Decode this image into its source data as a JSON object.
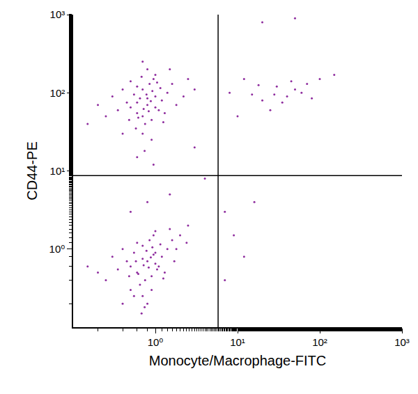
{
  "chart_data": {
    "type": "scatter",
    "x_label": "Monocyte/Macrophage-FITC",
    "y_label": "CD44-PE",
    "color": "#8e2c9e",
    "marker": "dot",
    "log": true,
    "grid": false,
    "xlim": [
      0.1,
      1000
    ],
    "ylim": [
      0.1,
      1000
    ],
    "xticks": [
      {
        "value": 1,
        "label": "10⁰"
      },
      {
        "value": 10,
        "label": "10¹"
      },
      {
        "value": 100,
        "label": "10²"
      },
      {
        "value": 1000,
        "label": "10³"
      }
    ],
    "yticks": [
      {
        "value": 1,
        "label": "10⁰"
      },
      {
        "value": 10,
        "label": "10¹"
      },
      {
        "value": 100,
        "label": "10²"
      },
      {
        "value": 1000,
        "label": "10³"
      }
    ],
    "gates": {
      "x": 5.8,
      "y": 8.7
    },
    "x": [
      0.8,
      0.6,
      1.0,
      0.7,
      0.9,
      1.2,
      0.5,
      0.65,
      0.85,
      1.1,
      0.75,
      0.95,
      1.4,
      0.55,
      0.45,
      0.7,
      1.3,
      0.6,
      0.8,
      1.6,
      0.35,
      0.3,
      0.25,
      0.9,
      1.0,
      1.8,
      0.5,
      0.4,
      1.15,
      0.72,
      0.88,
      0.62,
      1.05,
      2.2,
      0.2,
      0.68,
      0.78,
      1.25,
      0.58,
      0.92,
      0.83,
      0.48,
      2.5,
      0.15,
      1.5,
      0.74,
      0.7,
      3.0,
      0.95,
      0.4,
      0.6,
      1.0,
      0.8,
      0.7,
      0.8,
      0.6,
      1.0,
      0.7,
      0.9,
      1.2,
      0.5,
      0.65,
      0.85,
      1.1,
      0.75,
      0.95,
      1.4,
      0.55,
      0.45,
      0.7,
      1.3,
      0.6,
      0.8,
      1.6,
      0.35,
      0.3,
      0.25,
      0.9,
      1.0,
      1.8,
      0.5,
      0.4,
      1.15,
      0.72,
      0.88,
      0.62,
      1.05,
      2.0,
      0.2,
      0.68,
      0.78,
      1.25,
      0.58,
      0.92,
      0.83,
      0.48,
      1.7,
      0.15,
      1.5,
      0.74,
      0.4,
      2.4,
      0.95,
      0.55,
      0.7,
      1.0,
      8,
      12,
      20,
      30,
      40,
      25,
      50,
      70,
      100,
      15,
      35,
      60,
      150,
      10,
      45,
      80,
      18,
      28,
      7,
      9,
      16,
      12,
      7,
      0.5,
      1.5,
      0.8,
      2.5,
      3,
      4,
      0.6,
      20,
      50
    ],
    "values": [
      70,
      55,
      90,
      110,
      45,
      80,
      65,
      85,
      130,
      60,
      40,
      150,
      100,
      95,
      75,
      30,
      55,
      120,
      200,
      130,
      60,
      90,
      50,
      25,
      170,
      70,
      140,
      110,
      115,
      62,
      78,
      48,
      135,
      90,
      70,
      160,
      95,
      42,
      35,
      105,
      58,
      45,
      150,
      40,
      200,
      18,
      250,
      110,
      12,
      30,
      75,
      65,
      85,
      50,
      0.7,
      0.5,
      0.9,
      1.1,
      0.45,
      0.8,
      0.6,
      0.35,
      1.3,
      0.6,
      0.4,
      1.5,
      1.0,
      0.9,
      0.7,
      0.25,
      0.5,
      1.2,
      0.2,
      1.3,
      0.55,
      0.8,
      0.4,
      0.3,
      1.7,
      1.0,
      0.3,
      1.0,
      1.15,
      0.62,
      0.78,
      0.48,
      0.55,
      1.5,
      0.5,
      0.15,
      0.95,
      0.42,
      0.7,
      1.05,
      0.58,
      0.45,
      0.7,
      0.6,
      1.8,
      0.18,
      0.2,
      1.2,
      0.85,
      0.25,
      0.75,
      0.65,
      100,
      150,
      80,
      120,
      90,
      60,
      110,
      130,
      150,
      95,
      75,
      100,
      170,
      50,
      140,
      85,
      125,
      95,
      3,
      1.5,
      4,
      0.8,
      0.4,
      3,
      5,
      4,
      2,
      20,
      8,
      15,
      800,
      900
    ]
  }
}
